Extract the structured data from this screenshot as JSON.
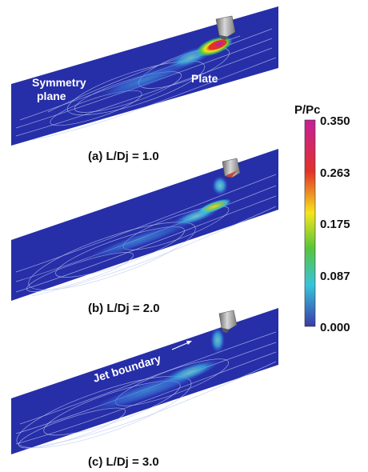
{
  "panels": [
    {
      "caption": "(a) L/Dj = 1.0",
      "annotations": [
        "Symmetry",
        "plane",
        "Plate"
      ],
      "intensity": 1.0
    },
    {
      "caption": "(b) L/Dj = 2.0",
      "annotations": [],
      "intensity": 0.55
    },
    {
      "caption": "(c) L/Dj = 3.0",
      "annotations": [
        "Jet boundary"
      ],
      "intensity": 0.35
    }
  ],
  "colorbar": {
    "title": "P/Pc",
    "ticks": [
      "0.350",
      "0.263",
      "0.175",
      "0.087",
      "0.000"
    ],
    "colors": [
      "#c41f9a",
      "#e2322a",
      "#f6e51c",
      "#58c53a",
      "#38c4dc",
      "#3a3aa8"
    ]
  },
  "colors": {
    "background_field": "#262ea8",
    "nozzle": "#9a9a9a"
  }
}
